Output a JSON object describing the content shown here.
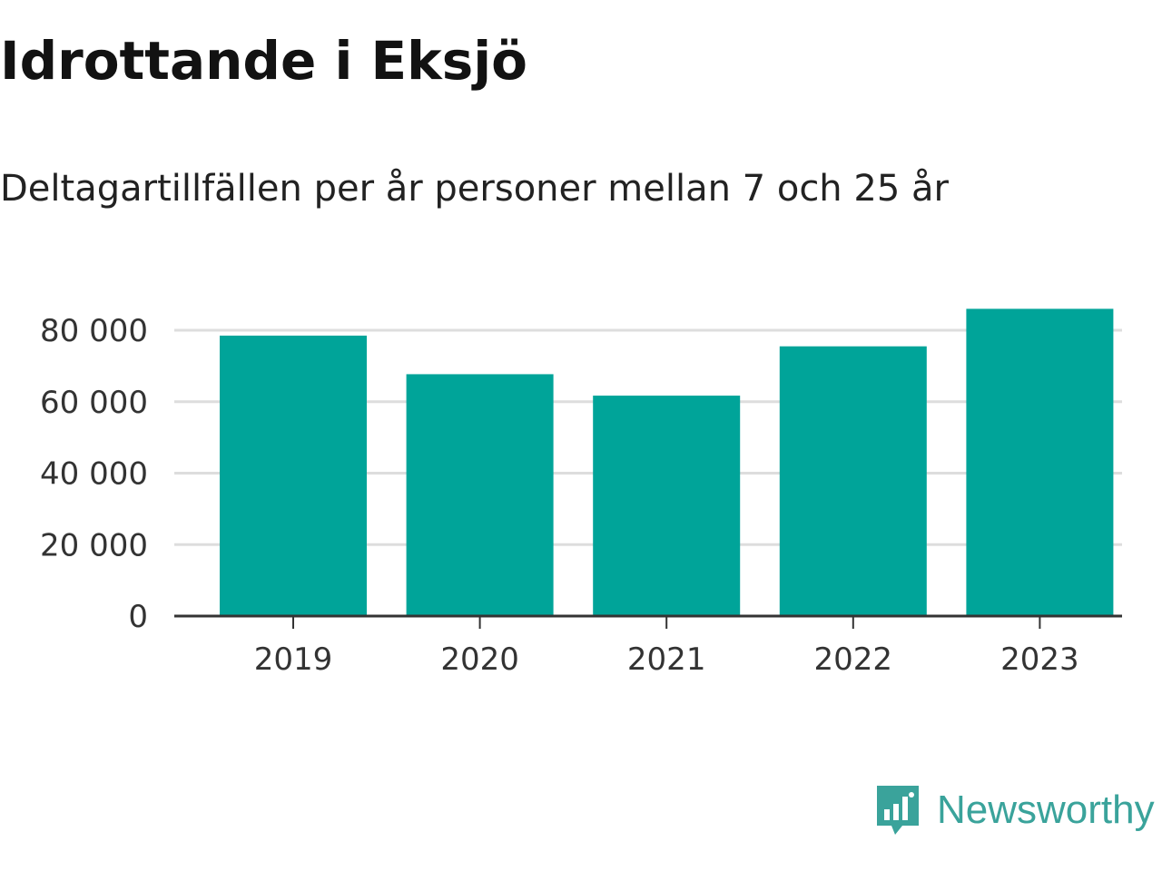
{
  "chart_data": {
    "type": "bar",
    "title": "Idrottande i Eksjö",
    "subtitle": "Deltagartillfällen per år personer mellan 7 och 25 år",
    "categories": [
      "2019",
      "2020",
      "2021",
      "2022",
      "2023"
    ],
    "values": [
      78500,
      67700,
      61700,
      75500,
      86000
    ],
    "ylim": [
      0,
      87000
    ],
    "yticks": [
      0,
      20000,
      40000,
      60000,
      80000
    ],
    "ytick_labels": [
      "0",
      "20 000",
      "40 000",
      "60 000",
      "80 000"
    ],
    "grid": true,
    "bar_color": "#00a499"
  },
  "branding": {
    "logo_text": "Newsworthy",
    "logo_color": "#3aa39b"
  }
}
